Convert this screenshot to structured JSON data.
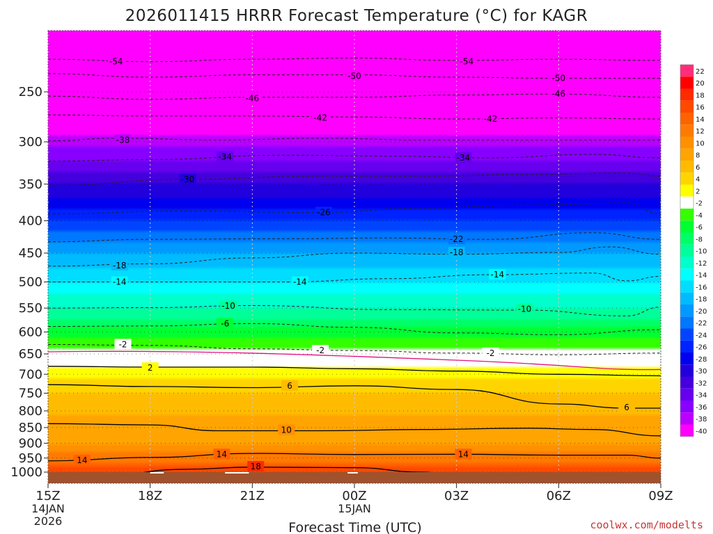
{
  "chart_data": {
    "type": "heatmap",
    "title": "2026011415 HRRR Forecast Temperature (°C) for KAGR",
    "xlabel": "Forecast Time (UTC)",
    "ylabel": "",
    "credit": "coolwx.com/modelts",
    "x_ticks": [
      {
        "hour": 0,
        "label": "15Z",
        "sub1": "14JAN",
        "sub2": "2026"
      },
      {
        "hour": 3,
        "label": "18Z",
        "sub1": "",
        "sub2": ""
      },
      {
        "hour": 6,
        "label": "21Z",
        "sub1": "",
        "sub2": ""
      },
      {
        "hour": 9,
        "label": "00Z",
        "sub1": "15JAN",
        "sub2": ""
      },
      {
        "hour": 12,
        "label": "03Z",
        "sub1": "",
        "sub2": ""
      },
      {
        "hour": 15,
        "label": "06Z",
        "sub1": "",
        "sub2": ""
      },
      {
        "hour": 18,
        "label": "09Z",
        "sub1": "",
        "sub2": ""
      }
    ],
    "xlim": [
      0,
      18
    ],
    "ylim_hpa": [
      1020,
      200
    ],
    "y_ticks": [
      "250",
      "300",
      "350",
      "400",
      "450",
      "500",
      "550",
      "600",
      "650",
      "700",
      "750",
      "800",
      "850",
      "900",
      "950",
      "1000"
    ],
    "colorbar": {
      "labels": [
        "22",
        "20",
        "18",
        "16",
        "14",
        "12",
        "10",
        "8",
        "6",
        "4",
        "2",
        "-2",
        "-4",
        "-6",
        "-8",
        "-10",
        "-12",
        "-14",
        "-16",
        "-18",
        "-20",
        "-22",
        "-24",
        "-26",
        "-28",
        "-30",
        "-32",
        "-34",
        "-36",
        "-38",
        "-40"
      ],
      "colors": [
        "#ff2d7a",
        "#ff0000",
        "#ff2a00",
        "#ff4800",
        "#ff6200",
        "#ff7a00",
        "#ff9000",
        "#ffa400",
        "#ffbb00",
        "#ffd500",
        "#ffff00",
        "#ffffff",
        "#33ff00",
        "#00ff33",
        "#00ff66",
        "#00ff99",
        "#00ffcc",
        "#00ffff",
        "#00ddff",
        "#00bbff",
        "#0099ff",
        "#0077ff",
        "#0044ff",
        "#0022ff",
        "#0000ee",
        "#2200dd",
        "#4400dd",
        "#6600ee",
        "#8800ff",
        "#bb00ff",
        "#ff00ff"
      ]
    },
    "temperature_profile": [
      {
        "p": 1000,
        "t": 18
      },
      {
        "p": 975,
        "t": 15
      },
      {
        "p": 950,
        "t": 13
      },
      {
        "p": 900,
        "t": 10
      },
      {
        "p": 850,
        "t": 9
      },
      {
        "p": 800,
        "t": 7.5
      },
      {
        "p": 750,
        "t": 6
      },
      {
        "p": 700,
        "t": 3.5
      },
      {
        "p": 680,
        "t": 1.5
      },
      {
        "p": 650,
        "t": -1
      },
      {
        "p": 600,
        "t": -5
      },
      {
        "p": 550,
        "t": -10
      },
      {
        "p": 500,
        "t": -14
      },
      {
        "p": 450,
        "t": -18
      },
      {
        "p": 400,
        "t": -24
      },
      {
        "p": 350,
        "t": -30
      },
      {
        "p": 300,
        "t": -37
      },
      {
        "p": 250,
        "t": -46
      },
      {
        "p": 200,
        "t": -55
      }
    ],
    "isotherms": [
      {
        "value": "-54",
        "labels": [
          [
            2.0,
            224
          ],
          [
            12.3,
            224
          ]
        ],
        "p": [
          [
            0,
            222
          ],
          [
            3,
            224
          ],
          [
            6,
            222
          ],
          [
            9,
            221
          ],
          [
            12,
            223
          ],
          [
            15,
            222
          ],
          [
            18,
            223
          ]
        ]
      },
      {
        "value": "-50",
        "labels": [
          [
            9.0,
            236
          ],
          [
            15.0,
            238
          ]
        ],
        "p": [
          [
            0,
            234
          ],
          [
            3,
            237
          ],
          [
            6,
            235
          ],
          [
            9,
            235
          ],
          [
            12,
            237
          ],
          [
            15,
            238
          ],
          [
            18,
            238
          ]
        ]
      },
      {
        "value": "-46",
        "labels": [
          [
            6.0,
            256
          ],
          [
            15.0,
            252
          ]
        ],
        "p": [
          [
            0,
            254
          ],
          [
            3,
            257
          ],
          [
            6,
            255
          ],
          [
            9,
            255
          ],
          [
            12,
            253
          ],
          [
            15,
            252
          ],
          [
            18,
            255
          ]
        ]
      },
      {
        "value": "-42",
        "labels": [
          [
            8.0,
            275
          ],
          [
            13.0,
            276
          ]
        ],
        "p": [
          [
            0,
            272
          ],
          [
            3,
            273
          ],
          [
            6,
            273
          ],
          [
            9,
            274
          ],
          [
            12,
            276
          ],
          [
            15,
            275
          ],
          [
            18,
            276
          ]
        ]
      },
      {
        "value": "-38",
        "labels": [
          [
            2.2,
            298
          ]
        ],
        "p": [
          [
            0,
            299
          ],
          [
            2,
            296
          ],
          [
            5,
            298
          ],
          [
            8,
            296
          ],
          [
            11,
            298
          ],
          [
            14,
            298
          ],
          [
            18,
            298
          ]
        ]
      },
      {
        "value": "-34",
        "labels": [
          [
            5.2,
            317
          ],
          [
            12.2,
            318
          ]
        ],
        "p": [
          [
            0,
            322
          ],
          [
            3,
            320
          ],
          [
            7,
            315
          ],
          [
            10,
            316
          ],
          [
            13,
            318
          ],
          [
            16,
            314
          ],
          [
            18,
            318
          ]
        ]
      },
      {
        "value": "-30",
        "labels": [
          [
            4.1,
            344
          ]
        ],
        "p": [
          [
            0,
            352
          ],
          [
            4,
            344
          ],
          [
            8,
            340
          ],
          [
            11,
            340
          ],
          [
            14,
            338
          ],
          [
            17,
            336
          ],
          [
            18,
            340
          ]
        ]
      },
      {
        "value": "-26",
        "labels": [
          [
            8.1,
            388
          ]
        ],
        "p": [
          [
            0,
            390
          ],
          [
            4,
            386
          ],
          [
            8,
            388
          ],
          [
            11,
            382
          ],
          [
            14,
            378
          ],
          [
            17,
            375
          ],
          [
            18,
            390
          ]
        ]
      },
      {
        "value": "-22",
        "labels": [
          [
            12.0,
            428
          ]
        ],
        "p": [
          [
            0,
            432
          ],
          [
            3,
            428
          ],
          [
            7,
            427
          ],
          [
            10,
            426
          ],
          [
            13,
            428
          ],
          [
            16,
            418
          ],
          [
            18,
            428
          ]
        ]
      },
      {
        "value": "-18",
        "labels": [
          [
            2.1,
            471
          ],
          [
            12.0,
            449
          ]
        ],
        "p": [
          [
            0,
            472
          ],
          [
            3,
            468
          ],
          [
            6,
            458
          ],
          [
            9,
            450
          ],
          [
            12,
            452
          ],
          [
            15,
            449
          ],
          [
            16.5,
            440
          ],
          [
            18,
            452
          ]
        ]
      },
      {
        "value": "-14",
        "labels": [
          [
            2.1,
            500
          ],
          [
            7.4,
            500
          ],
          [
            13.2,
            487
          ]
        ],
        "p": [
          [
            0,
            500
          ],
          [
            3,
            500
          ],
          [
            7,
            500
          ],
          [
            10,
            494
          ],
          [
            13,
            487
          ],
          [
            16,
            484
          ],
          [
            17,
            498
          ],
          [
            18,
            490
          ]
        ]
      },
      {
        "value": "-10",
        "labels": [
          [
            5.3,
            546
          ],
          [
            14.0,
            552
          ]
        ],
        "p": [
          [
            0,
            550
          ],
          [
            3,
            549
          ],
          [
            6,
            545
          ],
          [
            10,
            553
          ],
          [
            14,
            554
          ],
          [
            17,
            566
          ],
          [
            18,
            548
          ]
        ]
      },
      {
        "value": "-6",
        "labels": [
          [
            5.2,
            582
          ]
        ],
        "p": [
          [
            0,
            588
          ],
          [
            3,
            587
          ],
          [
            6,
            582
          ],
          [
            9,
            590
          ],
          [
            12,
            602
          ],
          [
            15,
            606
          ],
          [
            18,
            595
          ]
        ]
      },
      {
        "value": "-2",
        "labels": [
          [
            2.2,
            628
          ],
          [
            8.0,
            642
          ],
          [
            13.0,
            648
          ]
        ],
        "p": [
          [
            0,
            628
          ],
          [
            3,
            630
          ],
          [
            6,
            638
          ],
          [
            9,
            642
          ],
          [
            12,
            648
          ],
          [
            15,
            652
          ],
          [
            18,
            648
          ]
        ]
      },
      {
        "value": "2",
        "labels": [
          [
            3.0,
            684
          ]
        ],
        "p": [
          [
            0,
            680
          ],
          [
            3,
            682
          ],
          [
            6,
            682
          ],
          [
            9,
            686
          ],
          [
            12,
            692
          ],
          [
            15,
            700
          ],
          [
            18,
            704
          ]
        ]
      },
      {
        "value": "6",
        "labels": [
          [
            7.1,
            730
          ],
          [
            17.0,
            790
          ]
        ],
        "p": [
          [
            0,
            727
          ],
          [
            3,
            732
          ],
          [
            6,
            735
          ],
          [
            9,
            730
          ],
          [
            12,
            740
          ],
          [
            15,
            780
          ],
          [
            17,
            792
          ],
          [
            18,
            792
          ]
        ]
      },
      {
        "value": "10",
        "labels": [
          [
            7.0,
            858
          ]
        ],
        "p": [
          [
            0,
            838
          ],
          [
            3,
            842
          ],
          [
            5,
            860
          ],
          [
            8,
            860
          ],
          [
            11,
            856
          ],
          [
            14,
            852
          ],
          [
            16,
            856
          ],
          [
            18,
            876
          ]
        ]
      },
      {
        "value": "14",
        "labels": [
          [
            1.0,
            958
          ],
          [
            5.1,
            937
          ],
          [
            12.2,
            937
          ]
        ],
        "p": [
          [
            0,
            960
          ],
          [
            3,
            948
          ],
          [
            6,
            934
          ],
          [
            9,
            938
          ],
          [
            12,
            937
          ],
          [
            15,
            940
          ],
          [
            17,
            940
          ],
          [
            18,
            950
          ]
        ]
      },
      {
        "value": "18",
        "labels": [
          [
            6.1,
            980
          ]
        ],
        "p": [
          [
            1.5,
            1015
          ],
          [
            4,
            990
          ],
          [
            6,
            982
          ],
          [
            9,
            984
          ],
          [
            11,
            1000
          ],
          [
            12,
            1010
          ]
        ]
      }
    ]
  }
}
